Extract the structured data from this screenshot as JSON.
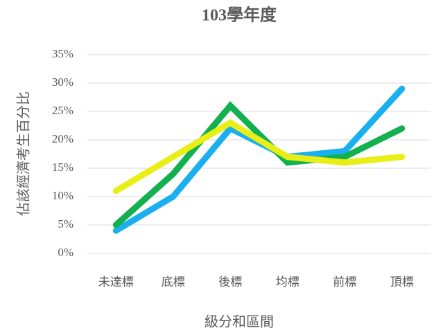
{
  "chart_data": {
    "type": "line",
    "title": "103學年度",
    "x_label": "級分和區間",
    "y_label": "佔該經濟考生百分比",
    "categories": [
      "未達標",
      "底標",
      "後標",
      "均標",
      "前標",
      "頂標"
    ],
    "series": [
      {
        "color": "#1ab0f0",
        "values": [
          4,
          10,
          22,
          17,
          18,
          29
        ]
      },
      {
        "color": "#12b04e",
        "values": [
          5,
          14,
          26,
          16,
          17,
          22
        ]
      },
      {
        "color": "#e8ee16",
        "values": [
          11,
          17,
          23,
          17,
          16,
          17
        ]
      }
    ],
    "ylim": [
      0,
      35
    ],
    "yticks": [
      {
        "value": 0,
        "label": "0%"
      },
      {
        "value": 5,
        "label": "5%"
      },
      {
        "value": 10,
        "label": "10%"
      },
      {
        "value": 15,
        "label": "15%"
      },
      {
        "value": 20,
        "label": "20%"
      },
      {
        "value": 25,
        "label": "25%"
      },
      {
        "value": 30,
        "label": "30%"
      },
      {
        "value": 35,
        "label": "35%"
      }
    ],
    "grid": true
  }
}
